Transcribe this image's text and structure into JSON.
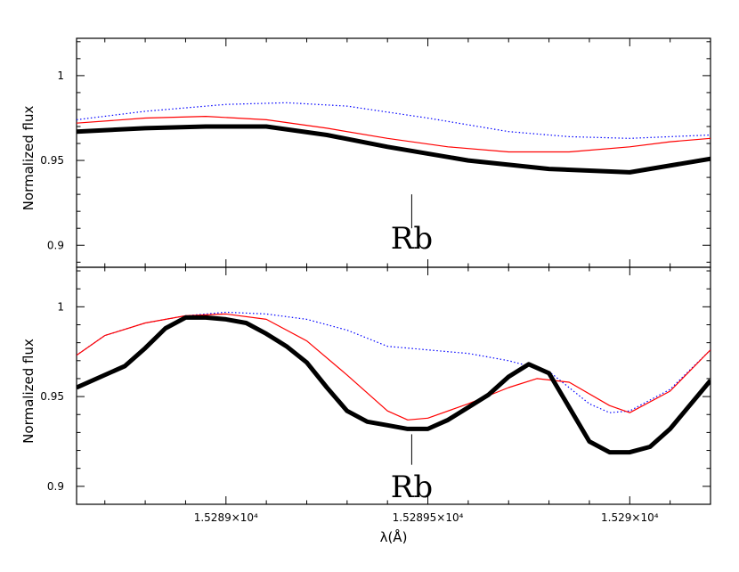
{
  "chart_data": [
    {
      "type": "line",
      "panel": "top",
      "title": "",
      "ylabel": "Normalized flux",
      "xlabel": "",
      "xlim": [
        15288.63,
        15290.2
      ],
      "ylim": [
        0.887,
        1.022
      ],
      "yticks": [
        {
          "value": 0.9,
          "label": "0.9"
        },
        {
          "value": 0.95,
          "label": "0.95"
        },
        {
          "value": 1.0,
          "label": "1"
        }
      ],
      "xticks": [
        15289.0,
        15289.5,
        15290.0
      ],
      "series": [
        {
          "style": "thick-black",
          "color": "#000000",
          "x": [
            15288.63,
            15288.8,
            15288.95,
            15289.1,
            15289.25,
            15289.4,
            15289.6,
            15289.8,
            15290.0,
            15290.2
          ],
          "y": [
            0.967,
            0.969,
            0.97,
            0.97,
            0.965,
            0.958,
            0.95,
            0.945,
            0.943,
            0.951
          ]
        },
        {
          "style": "thin-red",
          "color": "#ff0000",
          "x": [
            15288.63,
            15288.8,
            15288.95,
            15289.1,
            15289.25,
            15289.4,
            15289.55,
            15289.7,
            15289.85,
            15290.0,
            15290.1,
            15290.2
          ],
          "y": [
            0.972,
            0.975,
            0.976,
            0.974,
            0.969,
            0.963,
            0.958,
            0.955,
            0.955,
            0.958,
            0.961,
            0.963
          ]
        },
        {
          "style": "dotted-blue",
          "color": "#0000ff",
          "x": [
            15288.63,
            15288.8,
            15289.0,
            15289.15,
            15289.3,
            15289.5,
            15289.7,
            15289.85,
            15290.0,
            15290.2
          ],
          "y": [
            0.974,
            0.979,
            0.983,
            0.984,
            0.982,
            0.975,
            0.967,
            0.964,
            0.963,
            0.965
          ]
        }
      ],
      "annotation": {
        "text": "Rb",
        "x": 15289.46,
        "line_from": 0.93,
        "line_to": 0.91,
        "text_y": 0.898
      }
    },
    {
      "type": "line",
      "panel": "bottom",
      "title": "",
      "ylabel": "Normalized flux",
      "xlabel": "λ(Å)",
      "xlim": [
        15288.63,
        15290.2
      ],
      "ylim": [
        0.89,
        1.022
      ],
      "yticks": [
        {
          "value": 0.9,
          "label": "0.9"
        },
        {
          "value": 0.95,
          "label": "0.95"
        },
        {
          "value": 1.0,
          "label": "1"
        }
      ],
      "xticks": [
        15289.0,
        15289.5,
        15290.0
      ],
      "xtick_labels": [
        "1.5289×10⁴",
        "1.52895×10⁴",
        "1.529×10⁴"
      ],
      "series": [
        {
          "style": "thick-black",
          "color": "#000000",
          "x": [
            15288.63,
            15288.7,
            15288.75,
            15288.8,
            15288.85,
            15288.9,
            15288.95,
            15289.0,
            15289.05,
            15289.1,
            15289.15,
            15289.2,
            15289.25,
            15289.3,
            15289.35,
            15289.4,
            15289.45,
            15289.5,
            15289.55,
            15289.6,
            15289.65,
            15289.7,
            15289.75,
            15289.8,
            15289.85,
            15289.9,
            15289.95,
            15290.0,
            15290.05,
            15290.1,
            15290.2
          ],
          "y": [
            0.955,
            0.962,
            0.967,
            0.977,
            0.988,
            0.994,
            0.994,
            0.993,
            0.991,
            0.985,
            0.978,
            0.969,
            0.955,
            0.942,
            0.936,
            0.934,
            0.932,
            0.932,
            0.937,
            0.944,
            0.951,
            0.961,
            0.968,
            0.963,
            0.944,
            0.925,
            0.919,
            0.919,
            0.922,
            0.932,
            0.959
          ]
        },
        {
          "style": "thin-red",
          "color": "#ff0000",
          "x": [
            15288.63,
            15288.7,
            15288.8,
            15288.9,
            15289.0,
            15289.1,
            15289.2,
            15289.3,
            15289.4,
            15289.45,
            15289.5,
            15289.6,
            15289.7,
            15289.77,
            15289.85,
            15289.95,
            15290.0,
            15290.1,
            15290.2
          ],
          "y": [
            0.973,
            0.984,
            0.991,
            0.995,
            0.996,
            0.993,
            0.981,
            0.962,
            0.942,
            0.937,
            0.938,
            0.946,
            0.955,
            0.96,
            0.958,
            0.945,
            0.941,
            0.953,
            0.976
          ]
        },
        {
          "style": "dotted-blue",
          "color": "#0000ff",
          "x": [
            15288.63,
            15288.7,
            15288.8,
            15288.9,
            15289.0,
            15289.1,
            15289.2,
            15289.3,
            15289.4,
            15289.5,
            15289.6,
            15289.7,
            15289.8,
            15289.9,
            15289.95,
            15290.0,
            15290.1,
            15290.2
          ],
          "y": [
            0.973,
            0.984,
            0.991,
            0.995,
            0.997,
            0.996,
            0.993,
            0.987,
            0.978,
            0.976,
            0.974,
            0.97,
            0.964,
            0.946,
            0.941,
            0.942,
            0.954,
            0.976
          ]
        }
      ],
      "annotation": {
        "text": "Rb",
        "x": 15289.46,
        "line_from": 0.929,
        "line_to": 0.912,
        "text_y": 0.894
      }
    }
  ]
}
